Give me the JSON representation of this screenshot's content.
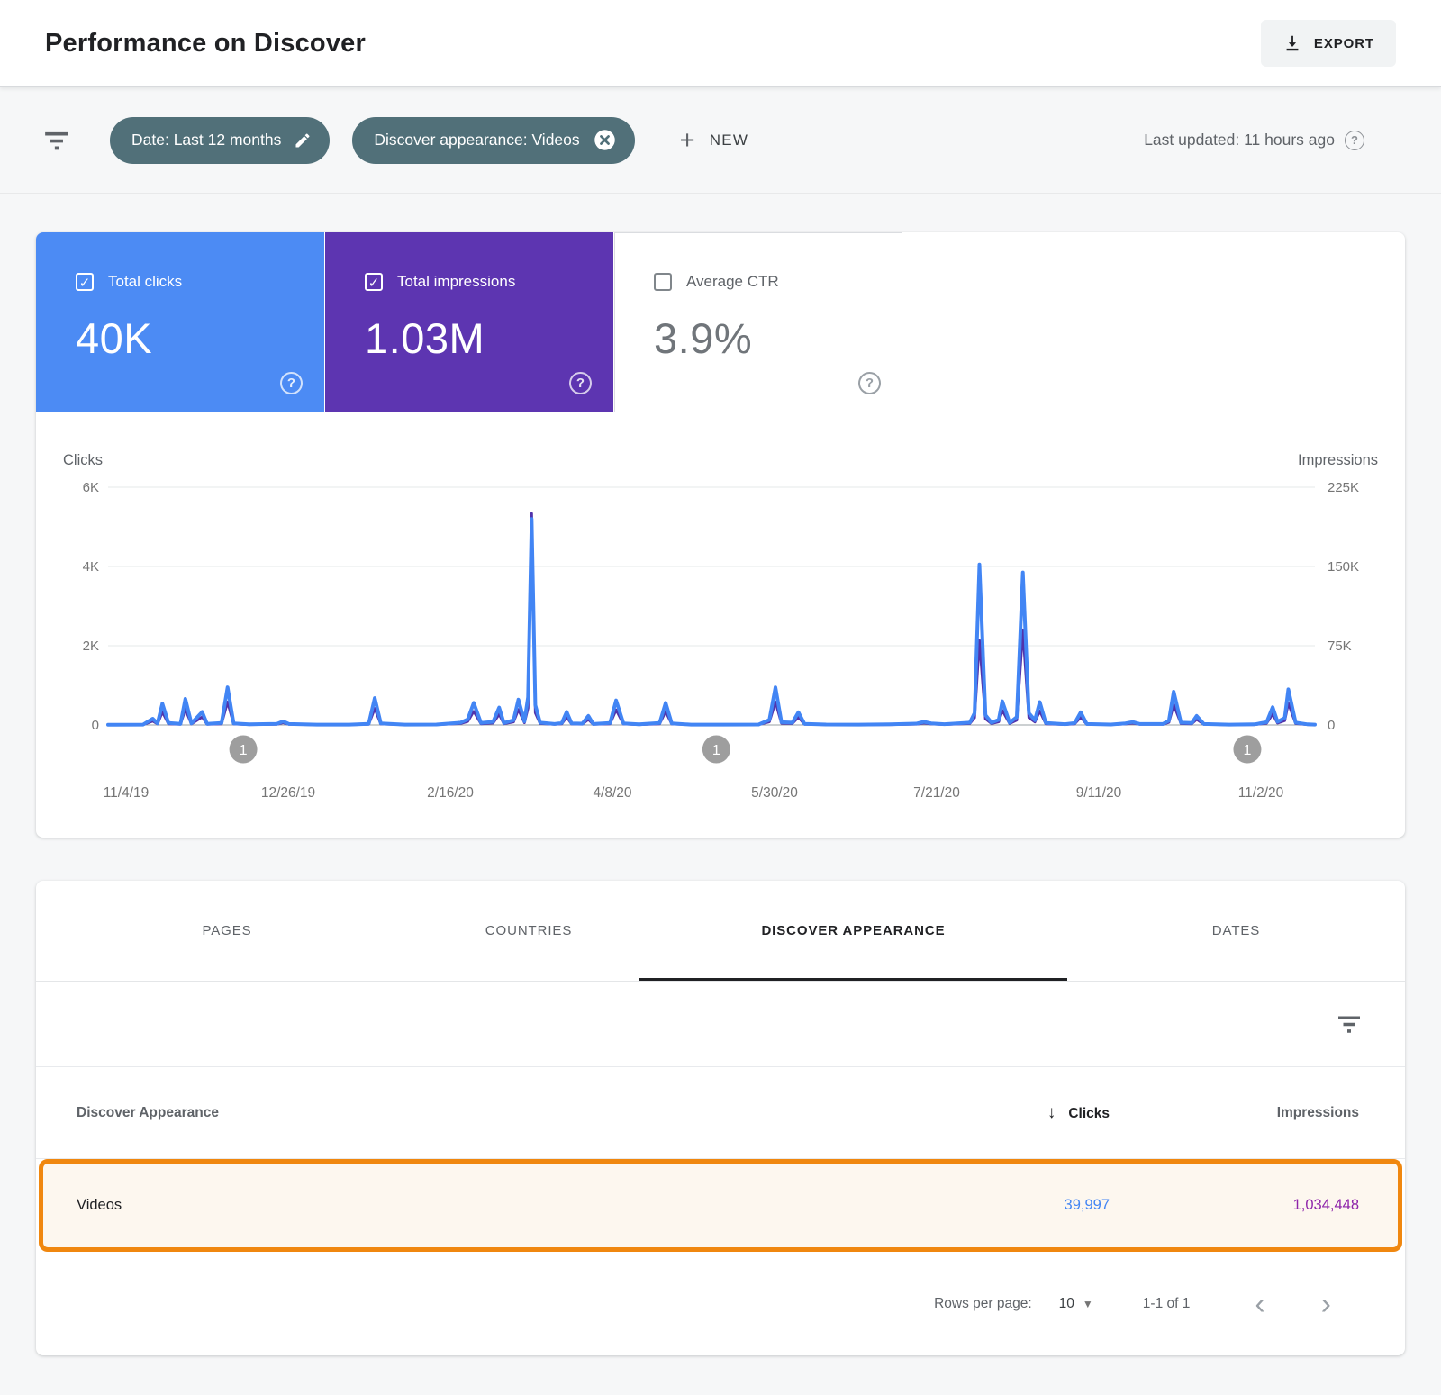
{
  "header": {
    "title": "Performance on Discover",
    "export_label": "EXPORT"
  },
  "filters": {
    "date_chip": "Date: Last 12 months",
    "appearance_chip": "Discover appearance: Videos",
    "new_label": "NEW",
    "last_updated": "Last updated: 11 hours ago"
  },
  "tiles": {
    "clicks": {
      "label": "Total clicks",
      "value": "40K",
      "checked": true,
      "color": "#4c8bf4"
    },
    "impressions": {
      "label": "Total impressions",
      "value": "1.03M",
      "checked": true,
      "color": "#5d35b1"
    },
    "ctr": {
      "label": "Average CTR",
      "value": "3.9%",
      "checked": false
    }
  },
  "colors": {
    "clicks_blue": "#4285f4",
    "impressions_purple": "#5133ab",
    "chip_slate": "#517079",
    "highlight_orange": "#f0870f",
    "highlight_row_bg": "#fdf7ef"
  },
  "icons": {
    "check": "✓",
    "plus": "+",
    "question_mark": "?",
    "sort_descending_arrow": "↓",
    "dropdown_arrow": "▼",
    "chevron_left": "‹",
    "chevron_right": "›"
  },
  "chart_data": {
    "type": "line",
    "title": "Performance on Discover — clicks and impressions over last 12 months",
    "x_axis": {
      "tick_labels": [
        "11/4/19",
        "12/26/19",
        "2/16/20",
        "4/8/20",
        "5/30/20",
        "7/21/20",
        "9/11/20",
        "11/2/20"
      ]
    },
    "left_axis": {
      "label": "Clicks",
      "ticks": [
        "6K",
        "4K",
        "2K",
        "0"
      ],
      "max": 6000
    },
    "right_axis": {
      "label": "Impressions",
      "ticks": [
        "225K",
        "150K",
        "75K",
        "0"
      ],
      "max": 225000
    },
    "annotations": [
      {
        "label": "1",
        "f": 0.112
      },
      {
        "label": "1",
        "f": 0.504
      },
      {
        "label": "1",
        "f": 0.944
      }
    ],
    "series": [
      {
        "name": "Clicks",
        "color": "#4285f4",
        "axis": "left",
        "points": [
          [
            0.0,
            5
          ],
          [
            0.029,
            10
          ],
          [
            0.037,
            160
          ],
          [
            0.041,
            40
          ],
          [
            0.045,
            540
          ],
          [
            0.05,
            50
          ],
          [
            0.06,
            30
          ],
          [
            0.064,
            660
          ],
          [
            0.069,
            40
          ],
          [
            0.078,
            330
          ],
          [
            0.082,
            30
          ],
          [
            0.094,
            50
          ],
          [
            0.099,
            950
          ],
          [
            0.104,
            40
          ],
          [
            0.117,
            15
          ],
          [
            0.14,
            30
          ],
          [
            0.145,
            90
          ],
          [
            0.15,
            25
          ],
          [
            0.173,
            10
          ],
          [
            0.2,
            10
          ],
          [
            0.216,
            30
          ],
          [
            0.221,
            680
          ],
          [
            0.226,
            40
          ],
          [
            0.246,
            10
          ],
          [
            0.272,
            12
          ],
          [
            0.292,
            60
          ],
          [
            0.298,
            140
          ],
          [
            0.303,
            560
          ],
          [
            0.309,
            50
          ],
          [
            0.319,
            80
          ],
          [
            0.324,
            440
          ],
          [
            0.328,
            50
          ],
          [
            0.336,
            120
          ],
          [
            0.34,
            640
          ],
          [
            0.345,
            90
          ],
          [
            0.348,
            700
          ],
          [
            0.351,
            5200
          ],
          [
            0.354,
            500
          ],
          [
            0.358,
            60
          ],
          [
            0.37,
            25
          ],
          [
            0.376,
            50
          ],
          [
            0.38,
            330
          ],
          [
            0.384,
            40
          ],
          [
            0.393,
            35
          ],
          [
            0.398,
            230
          ],
          [
            0.402,
            25
          ],
          [
            0.416,
            50
          ],
          [
            0.421,
            620
          ],
          [
            0.427,
            40
          ],
          [
            0.44,
            15
          ],
          [
            0.457,
            50
          ],
          [
            0.462,
            560
          ],
          [
            0.467,
            40
          ],
          [
            0.483,
            10
          ],
          [
            0.51,
            8
          ],
          [
            0.539,
            12
          ],
          [
            0.548,
            130
          ],
          [
            0.553,
            950
          ],
          [
            0.558,
            70
          ],
          [
            0.567,
            60
          ],
          [
            0.572,
            320
          ],
          [
            0.577,
            30
          ],
          [
            0.595,
            12
          ],
          [
            0.622,
            10
          ],
          [
            0.648,
            15
          ],
          [
            0.67,
            35
          ],
          [
            0.676,
            80
          ],
          [
            0.682,
            40
          ],
          [
            0.693,
            20
          ],
          [
            0.714,
            60
          ],
          [
            0.718,
            300
          ],
          [
            0.722,
            4050
          ],
          [
            0.727,
            250
          ],
          [
            0.732,
            60
          ],
          [
            0.738,
            130
          ],
          [
            0.741,
            600
          ],
          [
            0.747,
            60
          ],
          [
            0.753,
            200
          ],
          [
            0.758,
            3850
          ],
          [
            0.763,
            300
          ],
          [
            0.768,
            120
          ],
          [
            0.772,
            580
          ],
          [
            0.777,
            50
          ],
          [
            0.793,
            20
          ],
          [
            0.801,
            50
          ],
          [
            0.806,
            320
          ],
          [
            0.811,
            25
          ],
          [
            0.831,
            12
          ],
          [
            0.843,
            40
          ],
          [
            0.849,
            75
          ],
          [
            0.855,
            25
          ],
          [
            0.874,
            25
          ],
          [
            0.879,
            110
          ],
          [
            0.883,
            840
          ],
          [
            0.889,
            60
          ],
          [
            0.898,
            50
          ],
          [
            0.902,
            230
          ],
          [
            0.908,
            25
          ],
          [
            0.929,
            10
          ],
          [
            0.95,
            15
          ],
          [
            0.96,
            70
          ],
          [
            0.965,
            450
          ],
          [
            0.969,
            80
          ],
          [
            0.975,
            180
          ],
          [
            0.978,
            900
          ],
          [
            0.984,
            60
          ],
          [
            0.994,
            15
          ],
          [
            1.0,
            10
          ]
        ]
      },
      {
        "name": "Impressions",
        "color": "#5133ab",
        "axis": "right",
        "points": [
          [
            0.0,
            100
          ],
          [
            0.029,
            250
          ],
          [
            0.037,
            3700
          ],
          [
            0.041,
            900
          ],
          [
            0.045,
            12400
          ],
          [
            0.05,
            1150
          ],
          [
            0.06,
            700
          ],
          [
            0.064,
            15200
          ],
          [
            0.069,
            900
          ],
          [
            0.078,
            7600
          ],
          [
            0.082,
            700
          ],
          [
            0.094,
            1150
          ],
          [
            0.099,
            21800
          ],
          [
            0.104,
            900
          ],
          [
            0.117,
            350
          ],
          [
            0.14,
            700
          ],
          [
            0.145,
            2100
          ],
          [
            0.15,
            600
          ],
          [
            0.173,
            250
          ],
          [
            0.2,
            250
          ],
          [
            0.216,
            700
          ],
          [
            0.221,
            15600
          ],
          [
            0.226,
            900
          ],
          [
            0.246,
            250
          ],
          [
            0.272,
            300
          ],
          [
            0.292,
            1400
          ],
          [
            0.298,
            3200
          ],
          [
            0.303,
            12900
          ],
          [
            0.309,
            1150
          ],
          [
            0.319,
            1800
          ],
          [
            0.324,
            10100
          ],
          [
            0.328,
            1150
          ],
          [
            0.336,
            2800
          ],
          [
            0.34,
            14700
          ],
          [
            0.345,
            2100
          ],
          [
            0.348,
            16100
          ],
          [
            0.351,
            200000
          ],
          [
            0.354,
            11500
          ],
          [
            0.358,
            1400
          ],
          [
            0.37,
            600
          ],
          [
            0.376,
            1150
          ],
          [
            0.38,
            7600
          ],
          [
            0.384,
            900
          ],
          [
            0.393,
            800
          ],
          [
            0.398,
            5300
          ],
          [
            0.402,
            600
          ],
          [
            0.416,
            1150
          ],
          [
            0.421,
            14300
          ],
          [
            0.427,
            900
          ],
          [
            0.44,
            350
          ],
          [
            0.457,
            1150
          ],
          [
            0.462,
            12900
          ],
          [
            0.467,
            900
          ],
          [
            0.483,
            250
          ],
          [
            0.51,
            200
          ],
          [
            0.539,
            300
          ],
          [
            0.548,
            3000
          ],
          [
            0.553,
            21800
          ],
          [
            0.558,
            1600
          ],
          [
            0.567,
            1400
          ],
          [
            0.572,
            7400
          ],
          [
            0.577,
            700
          ],
          [
            0.595,
            300
          ],
          [
            0.622,
            250
          ],
          [
            0.648,
            350
          ],
          [
            0.67,
            800
          ],
          [
            0.676,
            1800
          ],
          [
            0.682,
            900
          ],
          [
            0.693,
            450
          ],
          [
            0.714,
            1400
          ],
          [
            0.718,
            6900
          ],
          [
            0.722,
            80000
          ],
          [
            0.727,
            5800
          ],
          [
            0.732,
            1400
          ],
          [
            0.738,
            3000
          ],
          [
            0.741,
            13800
          ],
          [
            0.747,
            1400
          ],
          [
            0.753,
            4600
          ],
          [
            0.758,
            90000
          ],
          [
            0.763,
            6900
          ],
          [
            0.768,
            2800
          ],
          [
            0.772,
            13300
          ],
          [
            0.777,
            1150
          ],
          [
            0.793,
            450
          ],
          [
            0.801,
            1150
          ],
          [
            0.806,
            7400
          ],
          [
            0.811,
            600
          ],
          [
            0.831,
            300
          ],
          [
            0.843,
            900
          ],
          [
            0.849,
            1700
          ],
          [
            0.855,
            600
          ],
          [
            0.874,
            600
          ],
          [
            0.879,
            2500
          ],
          [
            0.883,
            19300
          ],
          [
            0.889,
            1400
          ],
          [
            0.898,
            1150
          ],
          [
            0.902,
            5300
          ],
          [
            0.908,
            600
          ],
          [
            0.929,
            250
          ],
          [
            0.95,
            350
          ],
          [
            0.96,
            1600
          ],
          [
            0.965,
            10400
          ],
          [
            0.969,
            1800
          ],
          [
            0.975,
            4100
          ],
          [
            0.978,
            20700
          ],
          [
            0.984,
            1400
          ],
          [
            0.994,
            350
          ],
          [
            1.0,
            250
          ]
        ]
      }
    ]
  },
  "table": {
    "tabs": [
      "PAGES",
      "COUNTRIES",
      "DISCOVER APPEARANCE",
      "DATES"
    ],
    "active_tab": "DISCOVER APPEARANCE",
    "columns": {
      "name": "Discover Appearance",
      "clicks": "Clicks",
      "impressions": "Impressions"
    },
    "rows": [
      {
        "name": "Videos",
        "clicks": "39,997",
        "impressions": "1,034,448"
      }
    ],
    "footer": {
      "rows_per_page_label": "Rows per page:",
      "rows_per_page_value": "10",
      "range": "1-1 of 1"
    }
  }
}
